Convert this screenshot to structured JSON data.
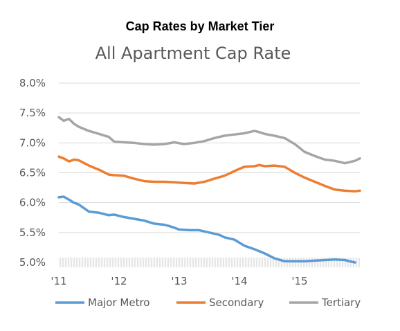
{
  "chart_data": {
    "type": "line",
    "title": "Cap Rates by Market Tier",
    "subtitle": "All Apartment Cap Rate",
    "xlabel": "",
    "ylabel": "",
    "x_tick_labels": [
      "'11",
      "'12",
      "'13",
      "'14",
      "'15"
    ],
    "y_tick_labels": [
      "8.0%",
      "7.5%",
      "7.0%",
      "6.5%",
      "6.0%",
      "5.5%",
      "5.0%"
    ],
    "ylim": [
      5.0,
      8.0
    ],
    "grid": "horizontal",
    "legend_position": "bottom",
    "series": [
      {
        "name": "Major Metro",
        "color": "#5b9bd5",
        "x": [
          2011.0,
          2011.08,
          2011.17,
          2011.25,
          2011.33,
          2011.5,
          2011.67,
          2011.83,
          2011.92,
          2012.08,
          2012.25,
          2012.42,
          2012.58,
          2012.75,
          2012.83,
          2012.92,
          2013.0,
          2013.17,
          2013.33,
          2013.5,
          2013.67,
          2013.75,
          2013.92,
          2014.08,
          2014.25,
          2014.42,
          2014.58,
          2014.75,
          2014.92,
          2015.08,
          2015.25,
          2015.42,
          2015.58,
          2015.75,
          2015.83,
          2015.92
        ],
        "values": [
          6.09,
          6.1,
          6.05,
          6.0,
          5.97,
          5.85,
          5.83,
          5.79,
          5.8,
          5.76,
          5.73,
          5.7,
          5.65,
          5.63,
          5.61,
          5.58,
          5.55,
          5.54,
          5.54,
          5.5,
          5.46,
          5.42,
          5.38,
          5.28,
          5.22,
          5.15,
          5.07,
          5.02,
          5.02,
          5.02,
          5.03,
          5.04,
          5.05,
          5.04,
          5.02,
          5.0
        ]
      },
      {
        "name": "Secondary",
        "color": "#ed7d31",
        "x": [
          2011.0,
          2011.08,
          2011.17,
          2011.25,
          2011.33,
          2011.5,
          2011.67,
          2011.83,
          2011.92,
          2012.08,
          2012.25,
          2012.42,
          2012.58,
          2012.75,
          2012.92,
          2013.08,
          2013.25,
          2013.42,
          2013.58,
          2013.75,
          2013.92,
          2014.08,
          2014.25,
          2014.33,
          2014.42,
          2014.58,
          2014.75,
          2014.92,
          2015.08,
          2015.25,
          2015.42,
          2015.58,
          2015.75,
          2015.92,
          2016.0
        ],
        "values": [
          6.77,
          6.74,
          6.69,
          6.72,
          6.71,
          6.62,
          6.55,
          6.47,
          6.46,
          6.45,
          6.4,
          6.36,
          6.35,
          6.35,
          6.34,
          6.33,
          6.32,
          6.35,
          6.4,
          6.45,
          6.53,
          6.6,
          6.61,
          6.63,
          6.61,
          6.62,
          6.6,
          6.5,
          6.42,
          6.35,
          6.28,
          6.22,
          6.2,
          6.19,
          6.2
        ]
      },
      {
        "name": "Tertiary",
        "color": "#a5a5a5",
        "x": [
          2011.0,
          2011.08,
          2011.17,
          2011.25,
          2011.33,
          2011.5,
          2011.67,
          2011.83,
          2011.92,
          2012.08,
          2012.25,
          2012.42,
          2012.58,
          2012.75,
          2012.92,
          2013.08,
          2013.25,
          2013.42,
          2013.58,
          2013.75,
          2013.92,
          2014.08,
          2014.25,
          2014.33,
          2014.42,
          2014.58,
          2014.75,
          2014.92,
          2015.08,
          2015.25,
          2015.42,
          2015.58,
          2015.75,
          2015.92,
          2016.0
        ],
        "values": [
          7.43,
          7.37,
          7.4,
          7.32,
          7.27,
          7.2,
          7.15,
          7.1,
          7.02,
          7.01,
          7.0,
          6.98,
          6.97,
          6.98,
          7.01,
          6.98,
          7.0,
          7.03,
          7.08,
          7.12,
          7.14,
          7.16,
          7.2,
          7.18,
          7.15,
          7.12,
          7.08,
          6.98,
          6.85,
          6.78,
          6.72,
          6.7,
          6.66,
          6.7,
          6.74
        ]
      }
    ]
  }
}
